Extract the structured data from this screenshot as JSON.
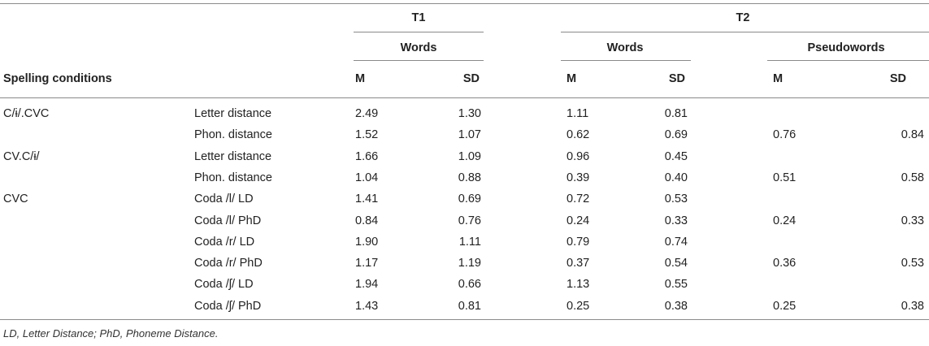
{
  "table": {
    "groups": {
      "t1": "T1",
      "t2": "T2"
    },
    "subgroups": {
      "t1_words": "Words",
      "t2_words": "Words",
      "t2_pseudowords": "Pseudowords"
    },
    "stub_header": "Spelling conditions",
    "stats": {
      "m": "M",
      "sd": "SD"
    },
    "rows": [
      {
        "condition": "C/ɨ/.CVC",
        "measure": "Letter distance",
        "t1_m": "2.49",
        "t1_sd": "1.30",
        "t2w_m": "1.11",
        "t2w_sd": "0.81",
        "t2p_m": "",
        "t2p_sd": ""
      },
      {
        "condition": "",
        "measure": "Phon. distance",
        "t1_m": "1.52",
        "t1_sd": "1.07",
        "t2w_m": "0.62",
        "t2w_sd": "0.69",
        "t2p_m": "0.76",
        "t2p_sd": "0.84"
      },
      {
        "condition": "CV.C/ɨ/",
        "measure": "Letter distance",
        "t1_m": "1.66",
        "t1_sd": "1.09",
        "t2w_m": "0.96",
        "t2w_sd": "0.45",
        "t2p_m": "",
        "t2p_sd": ""
      },
      {
        "condition": "",
        "measure": "Phon. distance",
        "t1_m": "1.04",
        "t1_sd": "0.88",
        "t2w_m": "0.39",
        "t2w_sd": "0.40",
        "t2p_m": "0.51",
        "t2p_sd": "0.58"
      },
      {
        "condition": "CVC",
        "measure": "Coda /l/ LD",
        "t1_m": "1.41",
        "t1_sd": "0.69",
        "t2w_m": "0.72",
        "t2w_sd": "0.53",
        "t2p_m": "",
        "t2p_sd": ""
      },
      {
        "condition": "",
        "measure": "Coda /l/ PhD",
        "t1_m": "0.84",
        "t1_sd": "0.76",
        "t2w_m": "0.24",
        "t2w_sd": "0.33",
        "t2p_m": "0.24",
        "t2p_sd": "0.33"
      },
      {
        "condition": "",
        "measure": "Coda /r/ LD",
        "t1_m": "1.90",
        "t1_sd": "1.11",
        "t2w_m": "0.79",
        "t2w_sd": "0.74",
        "t2p_m": "",
        "t2p_sd": ""
      },
      {
        "condition": "",
        "measure": "Coda /r/ PhD",
        "t1_m": "1.17",
        "t1_sd": "1.19",
        "t2w_m": "0.37",
        "t2w_sd": "0.54",
        "t2p_m": "0.36",
        "t2p_sd": "0.53"
      },
      {
        "condition": "",
        "measure": "Coda /ʃ/ LD",
        "t1_m": "1.94",
        "t1_sd": "0.66",
        "t2w_m": "1.13",
        "t2w_sd": "0.55",
        "t2p_m": "",
        "t2p_sd": ""
      },
      {
        "condition": "",
        "measure": "Coda /ʃ/ PhD",
        "t1_m": "1.43",
        "t1_sd": "0.81",
        "t2w_m": "0.25",
        "t2w_sd": "0.38",
        "t2p_m": "0.25",
        "t2p_sd": "0.38"
      }
    ],
    "footnote": "LD, Letter Distance; PhD, Phoneme Distance."
  }
}
